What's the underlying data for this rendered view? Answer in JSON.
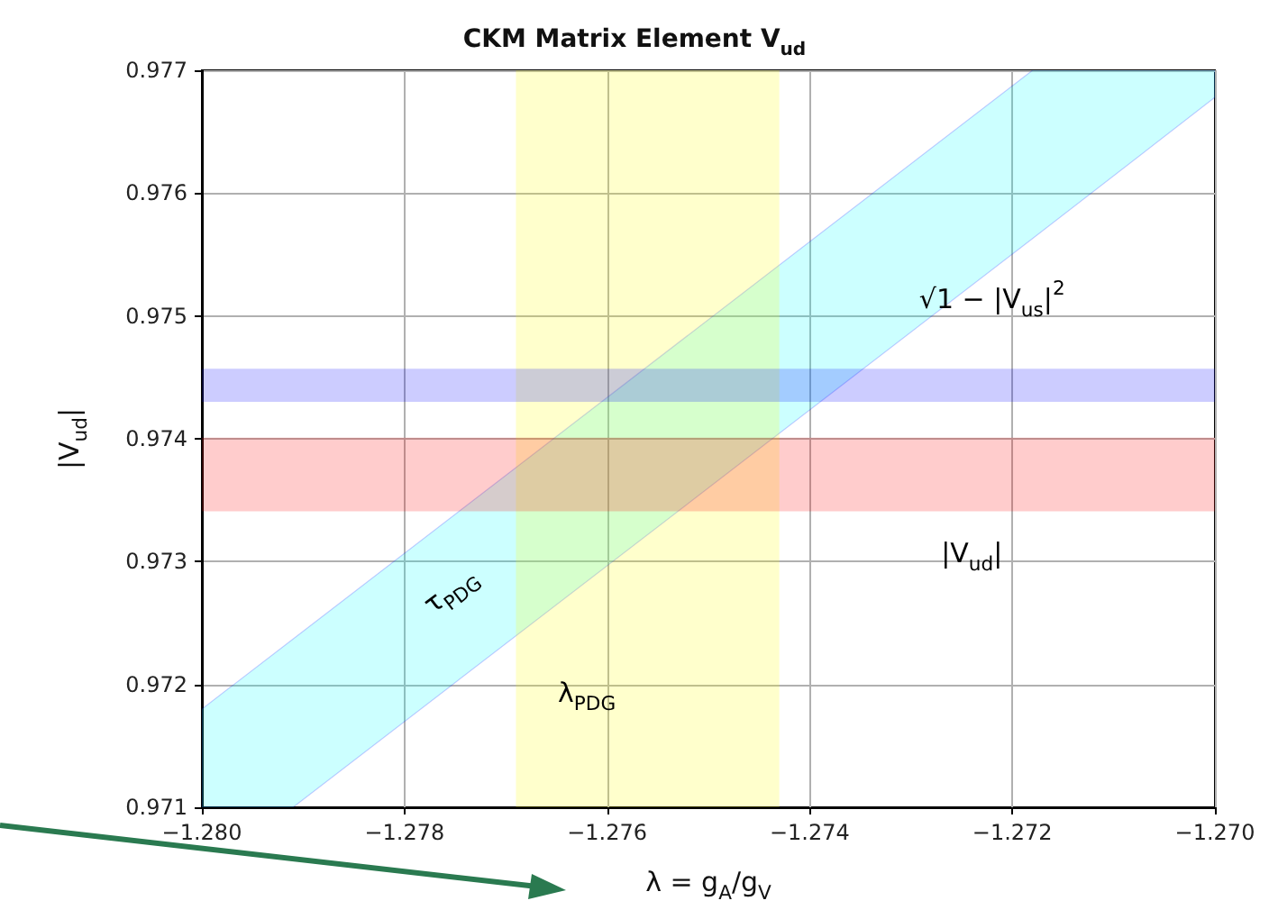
{
  "chart_data": {
    "type": "line",
    "title": "CKM Matrix Element V$_{ud}$",
    "xlabel": "λ = g$_{A}$/g$_{V}$",
    "ylabel": "|V$_{ud}$|",
    "xlim": [
      -1.28,
      -1.27
    ],
    "ylim": [
      0.971,
      0.977
    ],
    "xticks": [
      {
        "value": -1.28,
        "label": "−1.280"
      },
      {
        "value": -1.278,
        "label": "−1.278"
      },
      {
        "value": -1.276,
        "label": "−1.276"
      },
      {
        "value": -1.274,
        "label": "−1.274"
      },
      {
        "value": -1.272,
        "label": "−1.272"
      },
      {
        "value": -1.27,
        "label": "−1.270"
      }
    ],
    "yticks": [
      0.971,
      0.972,
      0.973,
      0.974,
      0.975,
      0.976,
      0.977
    ],
    "grid": true,
    "series": [
      {
        "color": "#00ffff",
        "x": [
          -1.28,
          -1.2791,
          -1.2718,
          -1.27
        ],
        "values": [
          null,
          null,
          null,
          null
        ],
        "lower": [
          0.971,
          0.971,
          0.97563,
          0.97678
        ],
        "upper": [
          0.9718,
          0.97237,
          0.977,
          0.977
        ]
      }
    ],
    "bands": [
      {
        "axis": "x",
        "from": -1.2769,
        "to": -1.2743,
        "color": "#ffff00",
        "label": "λ$_{PDG}$"
      },
      {
        "axis": "y",
        "from": 0.9743,
        "to": 0.97457,
        "color": "#0000ff",
        "label": "√1 − |V$_{us}$|$^{2}$"
      },
      {
        "axis": "y",
        "from": 0.97341,
        "to": 0.97401,
        "color": "#ff0000",
        "label": "|V$_{ud}$|"
      }
    ],
    "annotations": [
      "τ$_{PDG}$"
    ]
  }
}
